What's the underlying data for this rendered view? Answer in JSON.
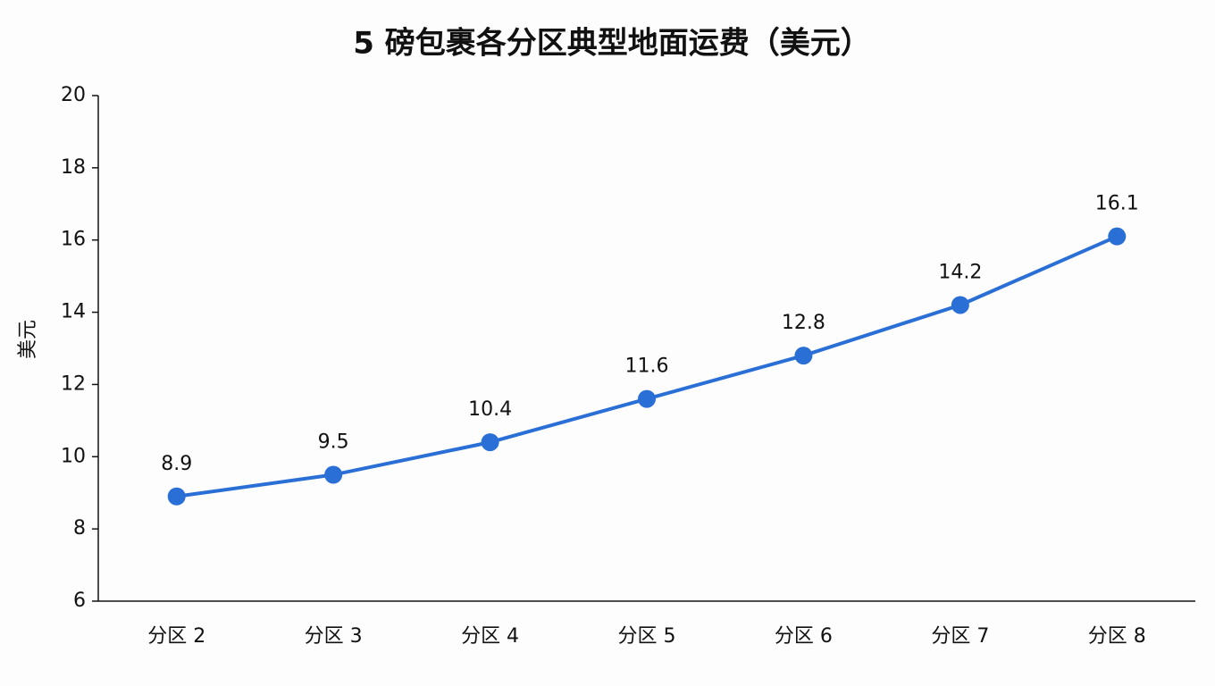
{
  "chart_data": {
    "type": "line",
    "title": "5 磅包裹各分区典型地面运费（美元）",
    "y_label": "美元",
    "categories": [
      "分区 2",
      "分区 3",
      "分区 4",
      "分区 5",
      "分区 6",
      "分区 7",
      "分区 8"
    ],
    "values": [
      8.9,
      9.5,
      10.4,
      11.6,
      12.8,
      14.2,
      16.1
    ],
    "color": "#2a6fd6",
    "ylim": [
      6,
      20
    ],
    "yticks": [
      6,
      8,
      10,
      12,
      14,
      16,
      18,
      20
    ],
    "grid": false
  }
}
